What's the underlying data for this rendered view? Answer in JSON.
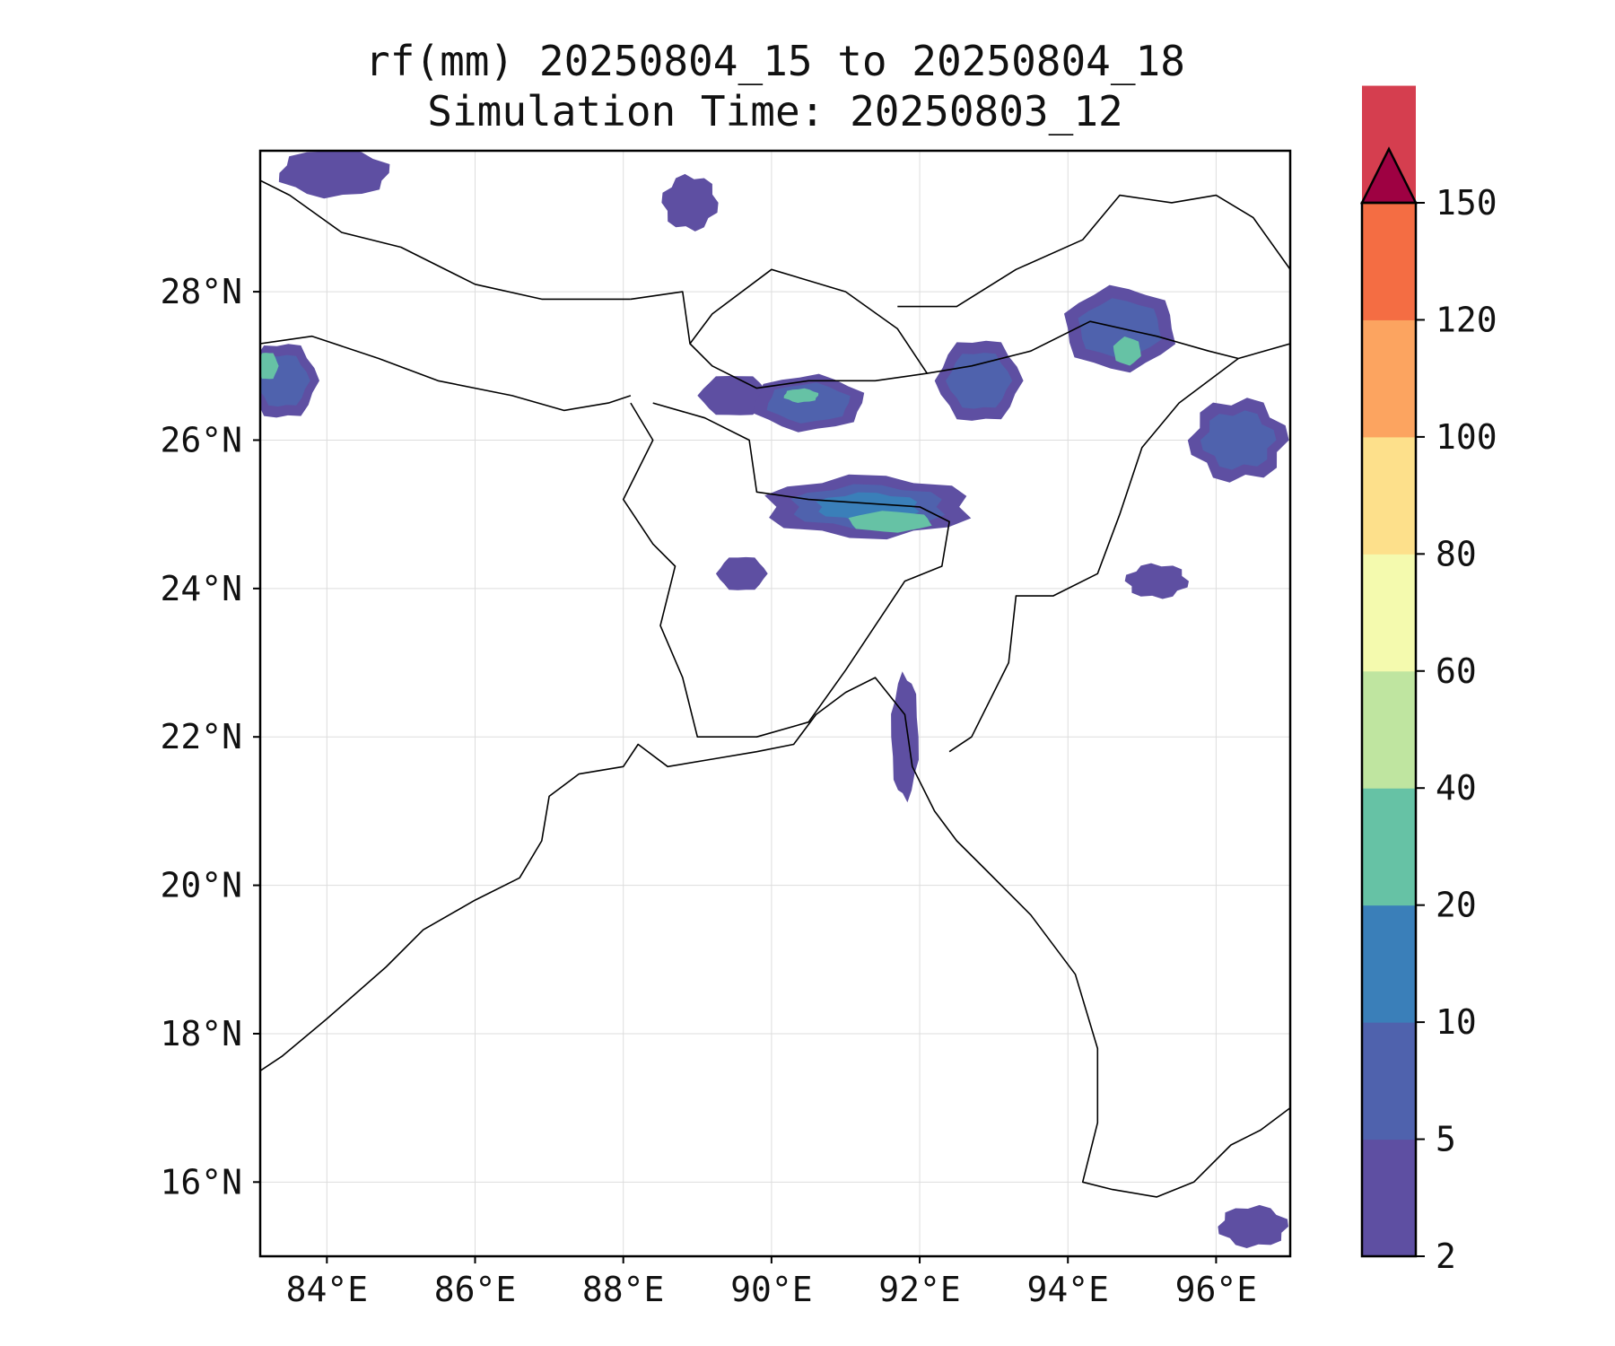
{
  "title": {
    "line1": "rf(mm) 20250804_15 to 20250804_18",
    "line2": "Simulation Time: 20250803_12"
  },
  "map": {
    "lon_range": [
      83.1,
      97.0
    ],
    "lat_range": [
      15.0,
      29.9
    ],
    "lon_ticks": [
      84,
      86,
      88,
      90,
      92,
      94,
      96
    ],
    "lon_tick_labels": [
      "84°E",
      "86°E",
      "88°E",
      "90°E",
      "92°E",
      "94°E",
      "96°E"
    ],
    "lat_ticks": [
      16,
      18,
      20,
      22,
      24,
      26,
      28
    ],
    "lat_tick_labels": [
      "16°N",
      "18°N",
      "20°N",
      "22°N",
      "24°N",
      "26°N",
      "28°N"
    ],
    "gridlines": true,
    "coastline_color": "#000000",
    "background_color": "#ffffff"
  },
  "colorbar": {
    "levels": [
      2,
      5,
      10,
      20,
      40,
      60,
      80,
      100,
      120,
      150
    ],
    "level_labels": [
      "2",
      "5",
      "10",
      "20",
      "40",
      "60",
      "80",
      "100",
      "120",
      "150"
    ],
    "colors": [
      "#5e4fa2",
      "#4f62ad",
      "#3a7fb9",
      "#66c2a5",
      "#bfe5a0",
      "#f4faae",
      "#fde08b",
      "#fca460",
      "#f46d43",
      "#d53e4f"
    ],
    "extend_color": "#9e0142",
    "extend": "max"
  },
  "rain_regions": [
    {
      "name": "tibet-north-west",
      "level": 1,
      "lon": 84.1,
      "lat": 29.6,
      "rlon": 0.8,
      "rlat": 0.35
    },
    {
      "name": "tibet-north-center",
      "level": 1,
      "lon": 88.9,
      "lat": 29.2,
      "rlon": 0.4,
      "rlat": 0.4
    },
    {
      "name": "nepal-west",
      "level": 2,
      "lon": 83.4,
      "lat": 26.8,
      "rlon": 0.5,
      "rlat": 0.55
    },
    {
      "name": "bhutan-west",
      "level": 1,
      "lon": 89.5,
      "lat": 26.6,
      "rlon": 0.5,
      "rlat": 0.3
    },
    {
      "name": "bhutan-south",
      "level": 2,
      "lon": 90.5,
      "lat": 26.5,
      "rlon": 0.8,
      "rlat": 0.4
    },
    {
      "name": "arunachal-west",
      "level": 2,
      "lon": 92.8,
      "lat": 26.8,
      "rlon": 0.6,
      "rlat": 0.6
    },
    {
      "name": "arunachal-center",
      "level": 2,
      "lon": 94.7,
      "lat": 27.5,
      "rlon": 0.8,
      "rlat": 0.6
    },
    {
      "name": "arunachal-east",
      "level": 2,
      "lon": 96.3,
      "lat": 26.0,
      "rlon": 0.7,
      "rlat": 0.6
    },
    {
      "name": "meghalaya",
      "level": 3,
      "lon": 91.3,
      "lat": 25.1,
      "rlon": 1.5,
      "rlat": 0.45
    },
    {
      "name": "bangladesh-north",
      "level": 1,
      "lon": 89.6,
      "lat": 24.2,
      "rlon": 0.35,
      "rlat": 0.25
    },
    {
      "name": "myanmar-north",
      "level": 1,
      "lon": 95.2,
      "lat": 24.1,
      "rlon": 0.45,
      "rlat": 0.25
    },
    {
      "name": "chittagong-coast",
      "level": 1,
      "lon": 91.8,
      "lat": 22.0,
      "rlon": 0.2,
      "rlat": 0.9
    },
    {
      "name": "andaman-south",
      "level": 1,
      "lon": 96.5,
      "lat": 15.4,
      "rlon": 0.5,
      "rlat": 0.3
    }
  ],
  "hotspots": [
    {
      "name": "meghalaya-core",
      "level": 3,
      "lon": 91.6,
      "lat": 24.9,
      "rlon": 0.6,
      "rlat": 0.15
    },
    {
      "name": "bhutan-core",
      "level": 3,
      "lon": 90.4,
      "lat": 26.6,
      "rlon": 0.25,
      "rlat": 0.1
    },
    {
      "name": "arunachal-core",
      "level": 3,
      "lon": 94.8,
      "lat": 27.2,
      "rlon": 0.2,
      "rlat": 0.2
    },
    {
      "name": "nepal-core",
      "level": 3,
      "lon": 83.2,
      "lat": 27.0,
      "rlon": 0.15,
      "rlat": 0.2
    }
  ]
}
